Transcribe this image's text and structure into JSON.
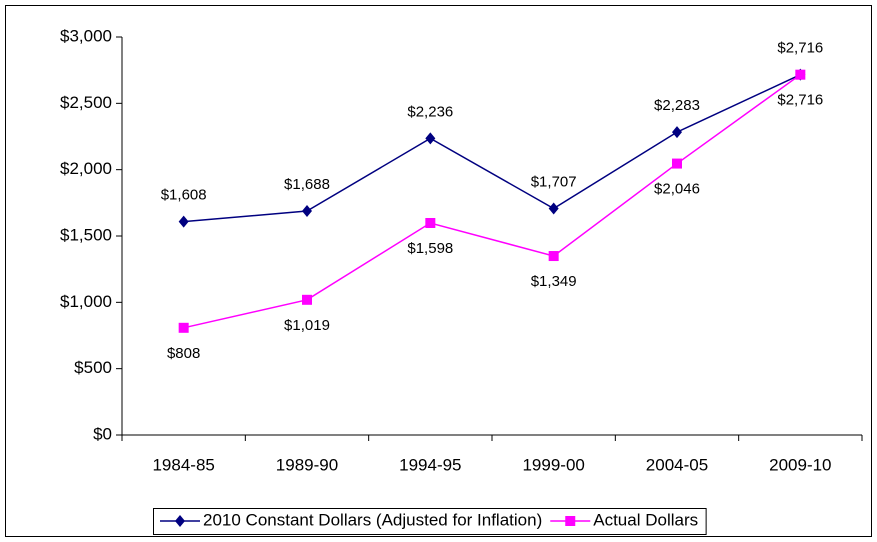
{
  "chart_data": {
    "type": "line",
    "categories": [
      "1984-85",
      "1989-90",
      "1994-95",
      "1999-00",
      "2004-05",
      "2009-10"
    ],
    "series": [
      {
        "name": "2010 Constant Dollars (Adjusted for Inflation)",
        "color": "#000080",
        "marker": "diamond",
        "values": [
          1608,
          1688,
          2236,
          1707,
          2283,
          2716
        ],
        "value_labels": [
          "$1,608",
          "$1,688",
          "$2,236",
          "$1,707",
          "$2,283",
          "$2,716"
        ]
      },
      {
        "name": "Actual Dollars",
        "color": "#ff00ff",
        "marker": "square",
        "values": [
          808,
          1019,
          1598,
          1349,
          2046,
          2716
        ],
        "value_labels": [
          "$808",
          "$1,019",
          "$1,598",
          "$1,349",
          "$2,046",
          "$2,716"
        ]
      }
    ],
    "ylim": [
      0,
      3000
    ],
    "yticks": [
      {
        "value": 0,
        "label": "$0"
      },
      {
        "value": 500,
        "label": "$500"
      },
      {
        "value": 1000,
        "label": "$1,000"
      },
      {
        "value": 1500,
        "label": "$1,500"
      },
      {
        "value": 2000,
        "label": "$2,000"
      },
      {
        "value": 2500,
        "label": "$2,500"
      },
      {
        "value": 3000,
        "label": "$3,000"
      }
    ],
    "grid": false,
    "legend": "bottom"
  }
}
